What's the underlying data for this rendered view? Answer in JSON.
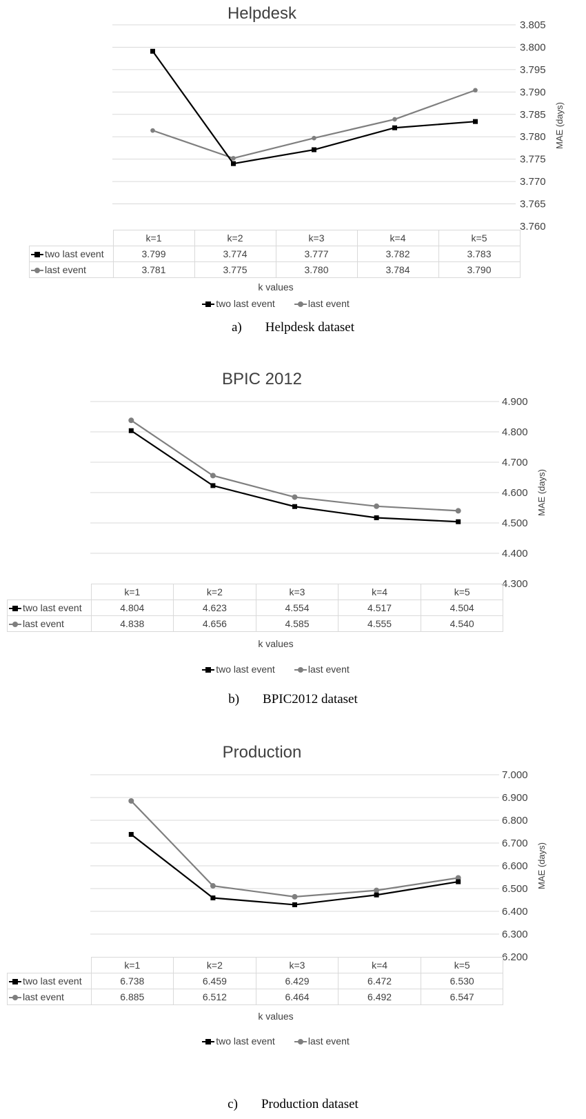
{
  "colors": {
    "series_two_last_event": "#000000",
    "series_last_event": "#7f7f7f",
    "grid": "#d9d9d9",
    "text": "#404040"
  },
  "chart_data": [
    {
      "type": "line",
      "title": "Helpdesk",
      "xlabel": "k values",
      "ylabel": "MAE (days)",
      "categories": [
        "k=1",
        "k=2",
        "k=3",
        "k=4",
        "k=5"
      ],
      "ylim": [
        3.76,
        3.805
      ],
      "ystep": 0.005,
      "ytick_labels": [
        "3.760",
        "3.765",
        "3.770",
        "3.775",
        "3.780",
        "3.785",
        "3.790",
        "3.795",
        "3.800",
        "3.805"
      ],
      "series": [
        {
          "name": "two last event",
          "values": [
            3.799,
            3.774,
            3.777,
            3.782,
            3.783
          ],
          "labels": [
            "3.799",
            "3.774",
            "3.777",
            "3.782",
            "3.783"
          ],
          "marker": "square",
          "plot_values": [
            3.7991,
            3.774,
            3.7771,
            3.782,
            3.7834
          ]
        },
        {
          "name": "last event",
          "values": [
            3.781,
            3.775,
            3.78,
            3.784,
            3.79
          ],
          "labels": [
            "3.781",
            "3.775",
            "3.780",
            "3.784",
            "3.790"
          ],
          "marker": "circle",
          "plot_values": [
            3.7814,
            3.7752,
            3.7797,
            3.7839,
            3.7904
          ]
        }
      ],
      "legend_position": "bottom",
      "caption_letter": "a)",
      "caption_text": "Helpdesk dataset"
    },
    {
      "type": "line",
      "title": "BPIC 2012",
      "xlabel": "k values",
      "ylabel": "MAE (days)",
      "categories": [
        "k=1",
        "k=2",
        "k=3",
        "k=4",
        "k=5"
      ],
      "ylim": [
        4.3,
        4.9
      ],
      "ystep": 0.1,
      "ytick_labels": [
        "4.300",
        "4.400",
        "4.500",
        "4.600",
        "4.700",
        "4.800",
        "4.900"
      ],
      "series": [
        {
          "name": "two last event",
          "values": [
            4.804,
            4.623,
            4.554,
            4.517,
            4.504
          ],
          "labels": [
            "4.804",
            "4.623",
            "4.554",
            "4.517",
            "4.504"
          ],
          "marker": "square",
          "plot_values": [
            4.804,
            4.623,
            4.554,
            4.517,
            4.504
          ]
        },
        {
          "name": "last event",
          "values": [
            4.838,
            4.656,
            4.585,
            4.555,
            4.54
          ],
          "labels": [
            "4.838",
            "4.656",
            "4.585",
            "4.555",
            "4.540"
          ],
          "marker": "circle",
          "plot_values": [
            4.838,
            4.656,
            4.585,
            4.555,
            4.54
          ]
        }
      ],
      "legend_position": "bottom",
      "caption_letter": "b)",
      "caption_text": "BPIC2012 dataset"
    },
    {
      "type": "line",
      "title": "Production",
      "xlabel": "k values",
      "ylabel": "MAE (days)",
      "categories": [
        "k=1",
        "k=2",
        "k=3",
        "k=4",
        "k=5"
      ],
      "ylim": [
        6.2,
        7.0
      ],
      "ystep": 0.1,
      "ytick_labels": [
        "6.200",
        "6.300",
        "6.400",
        "6.500",
        "6.600",
        "6.700",
        "6.800",
        "6.900",
        "7.000"
      ],
      "series": [
        {
          "name": "two last event",
          "values": [
            6.738,
            6.459,
            6.429,
            6.472,
            6.53
          ],
          "labels": [
            "6.738",
            "6.459",
            "6.429",
            "6.472",
            "6.530"
          ],
          "marker": "square",
          "plot_values": [
            6.738,
            6.459,
            6.429,
            6.472,
            6.53
          ]
        },
        {
          "name": "last event",
          "values": [
            6.885,
            6.512,
            6.464,
            6.492,
            6.547
          ],
          "labels": [
            "6.885",
            "6.512",
            "6.464",
            "6.492",
            "6.547"
          ],
          "marker": "circle",
          "plot_values": [
            6.885,
            6.512,
            6.464,
            6.492,
            6.547
          ]
        }
      ],
      "legend_position": "bottom",
      "caption_letter": "c)",
      "caption_text": "Production dataset"
    }
  ]
}
